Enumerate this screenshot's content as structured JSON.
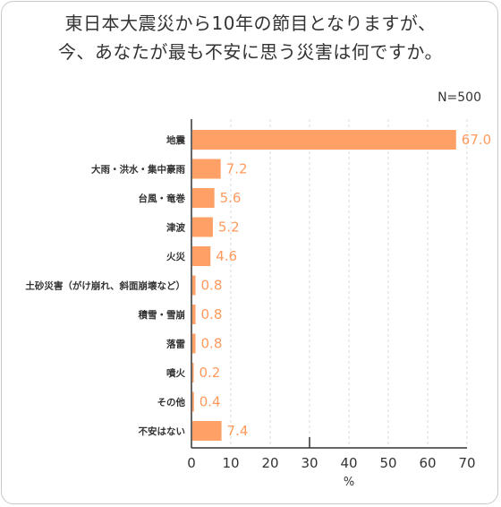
{
  "title_line1": "東日本大震災から10年の節目となりますが、",
  "title_line2": "今、あなたが最も不安に思う災害は何ですか。",
  "sample_size": "N=500",
  "colors": {
    "bar": "#FFA066",
    "label": "#FF9A5C",
    "grid": "#D9D9D9",
    "axis": "#333333"
  },
  "chart_data": {
    "type": "bar",
    "orientation": "horizontal",
    "categories": [
      "地震",
      "大雨・洪水・集中豪雨",
      "台風・竜巻",
      "津波",
      "火災",
      "土砂災害（がけ崩れ、斜面崩壊など）",
      "積雪・雪崩",
      "落雷",
      "噴火",
      "その他",
      "不安はない"
    ],
    "values": [
      67.0,
      7.2,
      5.6,
      5.2,
      4.6,
      0.8,
      0.8,
      0.8,
      0.2,
      0.4,
      7.4
    ],
    "value_labels": [
      "67.0",
      "7.2",
      "5.6",
      "5.2",
      "4.6",
      "0.8",
      "0.8",
      "0.8",
      "0.2",
      "0.4",
      "7.4"
    ],
    "xlim": [
      0,
      70
    ],
    "xticks": [
      "0",
      "10",
      "20",
      "30",
      "40",
      "50",
      "60",
      "70"
    ],
    "xlabel": "%",
    "grid": "vertical dashed"
  }
}
